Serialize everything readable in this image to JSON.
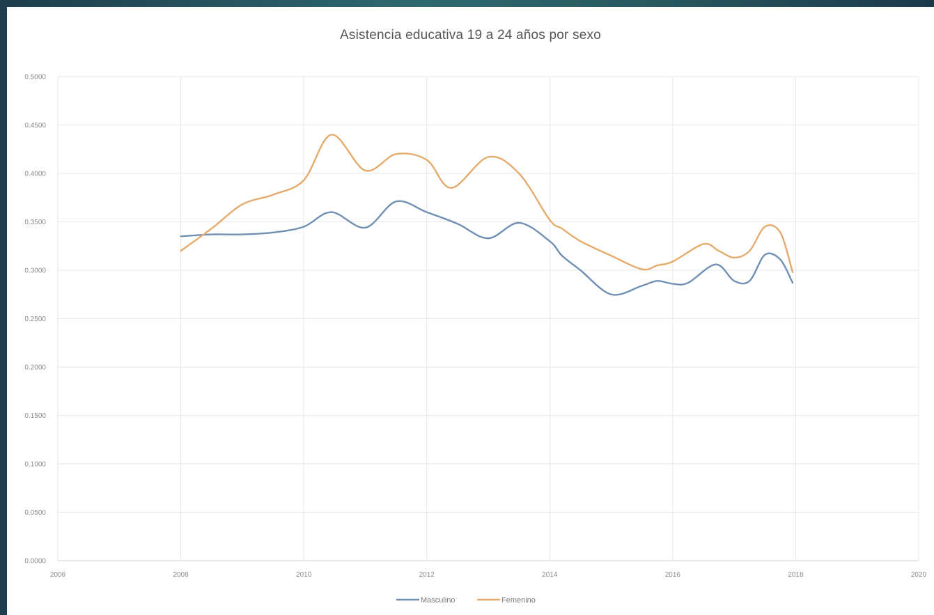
{
  "chart_data": {
    "type": "line",
    "title": "Asistencia educativa 19 a 24 años por sexo",
    "xlabel": "",
    "ylabel": "",
    "xlim": [
      2006,
      2020
    ],
    "ylim": [
      0,
      0.5
    ],
    "x_ticks": [
      2006,
      2008,
      2010,
      2012,
      2014,
      2016,
      2018,
      2020
    ],
    "y_ticks": [
      "0.0000",
      "0.0500",
      "0.1000",
      "0.1500",
      "0.2000",
      "0.2500",
      "0.3000",
      "0.3500",
      "0.4000",
      "0.4500",
      "0.5000"
    ],
    "grid": true,
    "legend_position": "bottom",
    "smooth": true,
    "series": [
      {
        "name": "Masculino",
        "color": "#6f8fb3",
        "points": [
          [
            2008.0,
            0.335
          ],
          [
            2008.5,
            0.337
          ],
          [
            2009.0,
            0.337
          ],
          [
            2009.5,
            0.339
          ],
          [
            2010.0,
            0.345
          ],
          [
            2010.45,
            0.36
          ],
          [
            2011.0,
            0.344
          ],
          [
            2011.5,
            0.371
          ],
          [
            2012.0,
            0.36
          ],
          [
            2012.5,
            0.348
          ],
          [
            2013.0,
            0.333
          ],
          [
            2013.5,
            0.349
          ],
          [
            2014.0,
            0.33
          ],
          [
            2014.2,
            0.315
          ],
          [
            2014.5,
            0.3
          ],
          [
            2015.0,
            0.275
          ],
          [
            2015.5,
            0.284
          ],
          [
            2015.75,
            0.289
          ],
          [
            2016.0,
            0.286
          ],
          [
            2016.25,
            0.287
          ],
          [
            2016.7,
            0.306
          ],
          [
            2017.0,
            0.289
          ],
          [
            2017.25,
            0.289
          ],
          [
            2017.5,
            0.316
          ],
          [
            2017.75,
            0.311
          ],
          [
            2017.95,
            0.287
          ]
        ]
      },
      {
        "name": "Femenino",
        "color": "#e5ab6d",
        "points": [
          [
            2008.0,
            0.32
          ],
          [
            2008.5,
            0.343
          ],
          [
            2009.0,
            0.368
          ],
          [
            2009.5,
            0.378
          ],
          [
            2010.0,
            0.393
          ],
          [
            2010.45,
            0.44
          ],
          [
            2011.0,
            0.403
          ],
          [
            2011.5,
            0.42
          ],
          [
            2012.0,
            0.414
          ],
          [
            2012.4,
            0.385
          ],
          [
            2013.0,
            0.417
          ],
          [
            2013.5,
            0.4
          ],
          [
            2014.0,
            0.352
          ],
          [
            2014.2,
            0.343
          ],
          [
            2014.5,
            0.33
          ],
          [
            2015.0,
            0.315
          ],
          [
            2015.5,
            0.301
          ],
          [
            2015.75,
            0.305
          ],
          [
            2016.0,
            0.309
          ],
          [
            2016.5,
            0.327
          ],
          [
            2016.75,
            0.32
          ],
          [
            2017.0,
            0.313
          ],
          [
            2017.25,
            0.32
          ],
          [
            2017.5,
            0.345
          ],
          [
            2017.75,
            0.339
          ],
          [
            2017.95,
            0.298
          ]
        ]
      }
    ]
  }
}
